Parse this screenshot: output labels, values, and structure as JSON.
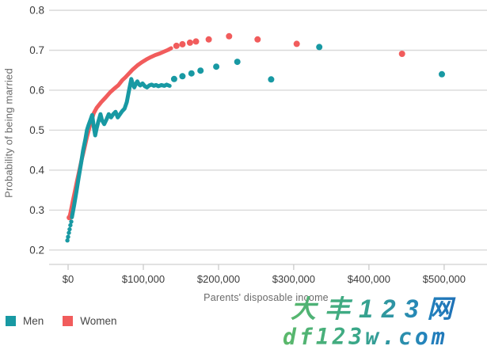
{
  "legend": {
    "items": [
      {
        "label": "Men",
        "color": "#1899a3"
      },
      {
        "label": "Women",
        "color": "#f15c5c"
      }
    ]
  },
  "watermark": {
    "line1": "大丰123网",
    "line2": "df123w.com",
    "color_green": "#5cb96a",
    "color_blue": "#1a5fb0"
  },
  "chart_data": {
    "type": "line+scatter",
    "title": "",
    "xlabel": "Parents' disposable income",
    "ylabel": "Probability of being married",
    "x_ticks": [
      0,
      100000,
      200000,
      300000,
      400000,
      500000
    ],
    "x_tick_labels": [
      "$0",
      "$100,000",
      "$200,000",
      "$300,000",
      "$400,000",
      "$500,000"
    ],
    "y_ticks": [
      0.2,
      0.3,
      0.4,
      0.5,
      0.6,
      0.7,
      0.8
    ],
    "y_tick_labels": [
      "0.2",
      "0.3",
      "0.4",
      "0.5",
      "0.6",
      "0.7",
      "0.8"
    ],
    "xlim": [
      -25300,
      557000
    ],
    "ylim": [
      0.164,
      0.8
    ],
    "grid": "horizontal",
    "legend_position": "bottom-left",
    "colors": {
      "grid": "#d9d9d9",
      "tick": "#c6c6c6",
      "tick_text": "#3b3b3b"
    },
    "series": [
      {
        "name": "Women",
        "color": "#f15c5c",
        "line_width": 5,
        "point_radius": 4,
        "start_point_radius": 3.4,
        "start_points": [
          [
            1500,
            0.281
          ]
        ],
        "line": [
          [
            1500,
            0.281
          ],
          [
            3000,
            0.292
          ],
          [
            6000,
            0.32
          ],
          [
            9000,
            0.347
          ],
          [
            12000,
            0.374
          ],
          [
            15000,
            0.4
          ],
          [
            18000,
            0.426
          ],
          [
            21000,
            0.45
          ],
          [
            25000,
            0.483
          ],
          [
            29000,
            0.512
          ],
          [
            34000,
            0.542
          ],
          [
            38000,
            0.556
          ],
          [
            44000,
            0.57
          ],
          [
            50000,
            0.582
          ],
          [
            56000,
            0.595
          ],
          [
            62000,
            0.605
          ],
          [
            67000,
            0.613
          ],
          [
            72000,
            0.625
          ],
          [
            76000,
            0.632
          ],
          [
            81000,
            0.642
          ],
          [
            86000,
            0.652
          ],
          [
            92000,
            0.662
          ],
          [
            98000,
            0.67
          ],
          [
            104000,
            0.677
          ],
          [
            110000,
            0.683
          ],
          [
            116000,
            0.688
          ],
          [
            122000,
            0.692
          ],
          [
            128000,
            0.697
          ],
          [
            133000,
            0.701
          ],
          [
            137000,
            0.705
          ]
        ],
        "points": [
          [
            144000,
            0.711
          ],
          [
            152000,
            0.715
          ],
          [
            162000,
            0.719
          ],
          [
            170000,
            0.722
          ],
          [
            187000,
            0.727
          ],
          [
            214000,
            0.735
          ],
          [
            252000,
            0.727
          ],
          [
            304000,
            0.716
          ],
          [
            444000,
            0.691
          ]
        ]
      },
      {
        "name": "Men",
        "color": "#1899a3",
        "line_width": 5,
        "point_radius": 4,
        "start_point_radius": 2.7,
        "start_points": [
          [
            -1000,
            0.224
          ],
          [
            0,
            0.233
          ],
          [
            1000,
            0.243
          ],
          [
            2000,
            0.252
          ],
          [
            3000,
            0.262
          ],
          [
            4200,
            0.271
          ]
        ],
        "line": [
          [
            5000,
            0.282
          ],
          [
            8000,
            0.312
          ],
          [
            11000,
            0.346
          ],
          [
            14000,
            0.381
          ],
          [
            17000,
            0.415
          ],
          [
            20000,
            0.45
          ],
          [
            23000,
            0.478
          ],
          [
            25000,
            0.5
          ],
          [
            27000,
            0.512
          ],
          [
            30000,
            0.527
          ],
          [
            32000,
            0.538
          ],
          [
            34000,
            0.51
          ],
          [
            36000,
            0.487
          ],
          [
            38000,
            0.505
          ],
          [
            40000,
            0.52
          ],
          [
            43000,
            0.54
          ],
          [
            45000,
            0.525
          ],
          [
            48000,
            0.515
          ],
          [
            51000,
            0.527
          ],
          [
            54000,
            0.54
          ],
          [
            57000,
            0.532
          ],
          [
            60000,
            0.54
          ],
          [
            63000,
            0.546
          ],
          [
            66000,
            0.532
          ],
          [
            69000,
            0.54
          ],
          [
            72000,
            0.548
          ],
          [
            75000,
            0.554
          ],
          [
            78000,
            0.57
          ],
          [
            81000,
            0.6
          ],
          [
            84000,
            0.628
          ],
          [
            86000,
            0.615
          ],
          [
            88000,
            0.607
          ],
          [
            90000,
            0.616
          ],
          [
            92000,
            0.622
          ],
          [
            94000,
            0.615
          ],
          [
            96000,
            0.612
          ],
          [
            99000,
            0.617
          ],
          [
            102000,
            0.61
          ],
          [
            105000,
            0.607
          ],
          [
            108000,
            0.612
          ],
          [
            111000,
            0.614
          ],
          [
            114000,
            0.611
          ],
          [
            117000,
            0.613
          ],
          [
            120000,
            0.61
          ],
          [
            124000,
            0.613
          ],
          [
            128000,
            0.611
          ],
          [
            131000,
            0.614
          ],
          [
            135000,
            0.611
          ]
        ],
        "points": [
          [
            141000,
            0.628
          ],
          [
            152000,
            0.635
          ],
          [
            164000,
            0.642
          ],
          [
            176000,
            0.649
          ],
          [
            197000,
            0.659
          ],
          [
            225000,
            0.671
          ],
          [
            270000,
            0.627
          ],
          [
            334000,
            0.708
          ],
          [
            497000,
            0.64
          ]
        ]
      }
    ]
  }
}
